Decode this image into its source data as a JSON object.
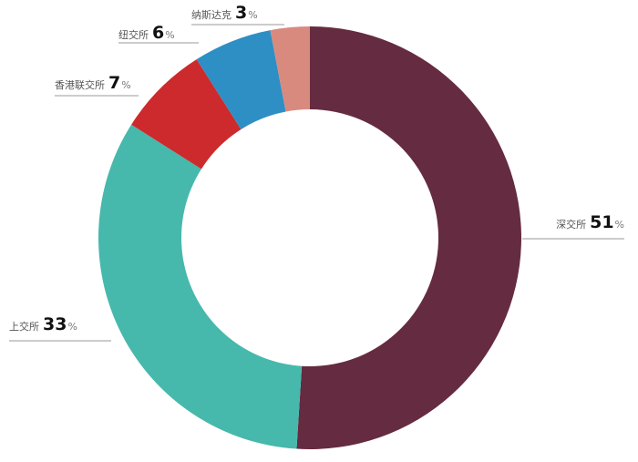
{
  "chart_data": {
    "type": "donut",
    "categories": [
      "深交所",
      "上交所",
      "香港联交所",
      "纽交所",
      "纳斯达克"
    ],
    "values": [
      51,
      33,
      7,
      6,
      3
    ],
    "unit": "%",
    "colors": [
      "#652b40",
      "#47b8ac",
      "#cc2a2c",
      "#2e8fc4",
      "#d98a7e"
    ]
  }
}
